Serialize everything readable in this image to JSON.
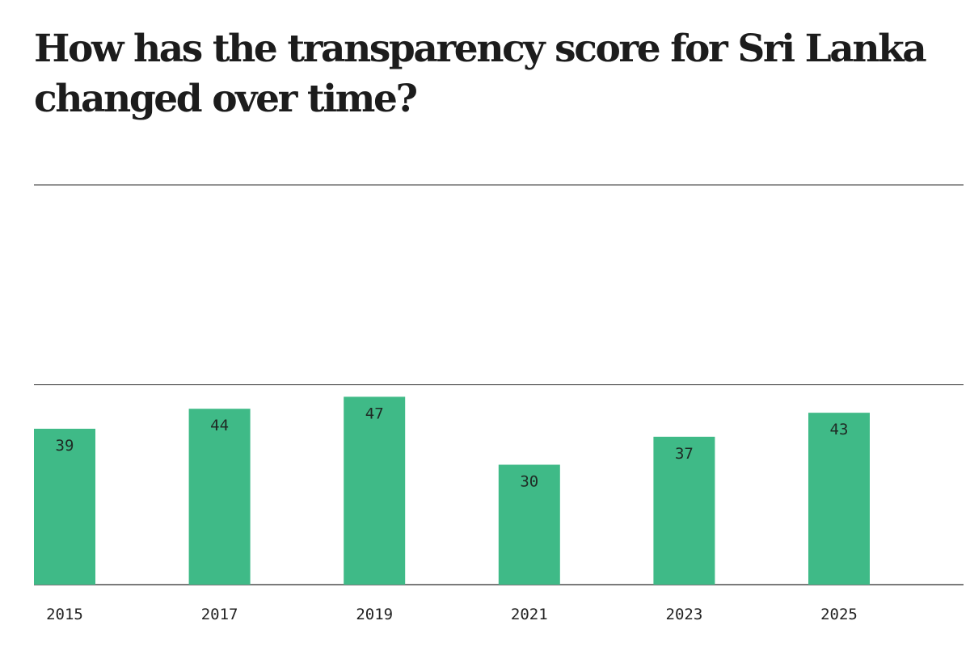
{
  "title": "How has the transparency score for Sri Lanka changed over time?",
  "colors": {
    "bar": "#3fba87",
    "text": "#1c1c1c",
    "grid": "#2a2a2a"
  },
  "chart_data": {
    "type": "bar",
    "title": "How has the transparency score for Sri Lanka changed over time?",
    "xlabel": "",
    "ylabel": "",
    "categories": [
      "2015",
      "2017",
      "2019",
      "2021",
      "2023",
      "2025"
    ],
    "values": [
      39,
      44,
      47,
      30,
      37,
      43
    ],
    "ylim": [
      0,
      100
    ],
    "gridlines": [
      50,
      100
    ],
    "grid": true,
    "data_labels": true,
    "legend": "none"
  }
}
